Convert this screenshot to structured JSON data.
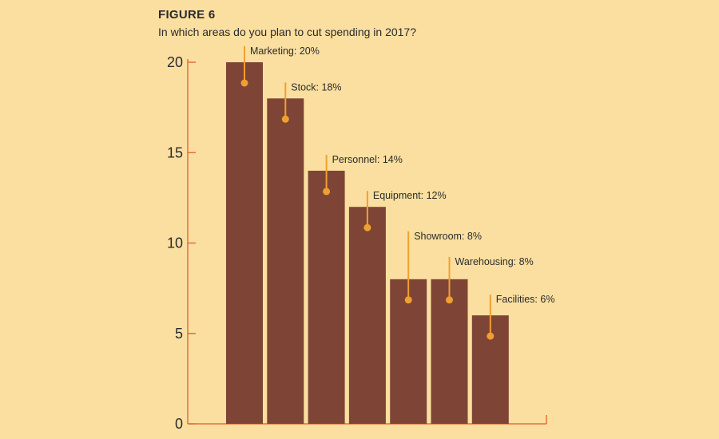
{
  "header": {
    "figure_label": "FIGURE 6",
    "title": "In which areas do you plan to cut spending in 2017?"
  },
  "chart_data": {
    "type": "bar",
    "title": "In which areas do you plan to cut spending in 2017?",
    "categories": [
      "Marketing",
      "Stock",
      "Personnel",
      "Equipment",
      "Showroom",
      "Warehousing",
      "Facilities"
    ],
    "values": [
      20,
      18,
      14,
      12,
      8,
      8,
      6
    ],
    "data_labels": [
      "Marketing: 20%",
      "Stock: 18%",
      "Personnel: 14%",
      "Equipment: 12%",
      "Showroom: 8%",
      "Warehousing: 8%",
      "Facilities: 6%"
    ],
    "yticks": [
      0,
      5,
      10,
      15,
      20
    ],
    "ylim": [
      0,
      20
    ],
    "xlabel": "",
    "ylabel": "",
    "grid": false,
    "colors": {
      "background": "#fbdfa0",
      "bar": "#7e4536",
      "axis": "#e0703a",
      "marker": "#f0a030"
    }
  }
}
